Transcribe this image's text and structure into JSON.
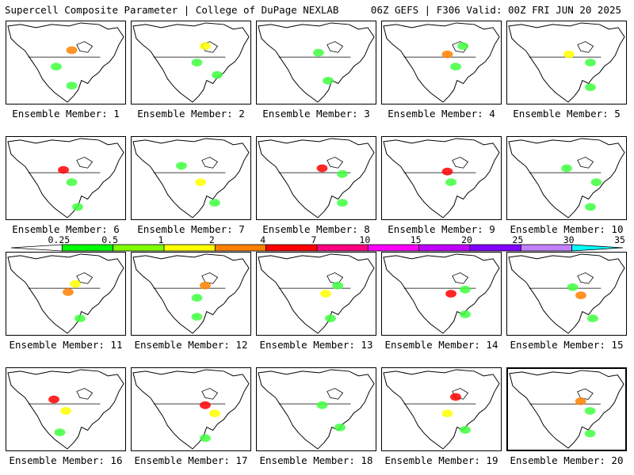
{
  "header": {
    "left": "Supercell Composite Parameter | College of DuPage NEXLAB",
    "right": "06Z GEFS | F306 Valid: 00Z FRI JUN 20 2025"
  },
  "members": [
    {
      "label": "Ensemble Member: 1",
      "blobs": [
        [
          0.55,
          0.35,
          "#ff8000"
        ],
        [
          0.42,
          0.55,
          "#40ff40"
        ],
        [
          0.55,
          0.78,
          "#40ff40"
        ]
      ]
    },
    {
      "label": "Ensemble Member: 2",
      "blobs": [
        [
          0.62,
          0.3,
          "#ffff00"
        ],
        [
          0.55,
          0.5,
          "#40ff40"
        ],
        [
          0.72,
          0.65,
          "#40ff40"
        ]
      ]
    },
    {
      "label": "Ensemble Member: 3",
      "blobs": [
        [
          0.52,
          0.38,
          "#40ff40"
        ],
        [
          0.6,
          0.72,
          "#40ff40"
        ]
      ]
    },
    {
      "label": "Ensemble Member: 4",
      "blobs": [
        [
          0.55,
          0.4,
          "#ff8000"
        ],
        [
          0.62,
          0.55,
          "#40ff40"
        ],
        [
          0.68,
          0.3,
          "#40ff40"
        ]
      ]
    },
    {
      "label": "Ensemble Member: 5",
      "blobs": [
        [
          0.52,
          0.4,
          "#ffff00"
        ],
        [
          0.7,
          0.5,
          "#40ff40"
        ],
        [
          0.7,
          0.8,
          "#40ff40"
        ]
      ]
    },
    {
      "label": "Ensemble Member: 6",
      "blobs": [
        [
          0.48,
          0.4,
          "#ff0000"
        ],
        [
          0.55,
          0.55,
          "#40ff40"
        ],
        [
          0.6,
          0.85,
          "#40ff40"
        ]
      ]
    },
    {
      "label": "Ensemble Member: 7",
      "blobs": [
        [
          0.42,
          0.35,
          "#40ff40"
        ],
        [
          0.58,
          0.55,
          "#ffff00"
        ],
        [
          0.7,
          0.8,
          "#40ff40"
        ]
      ]
    },
    {
      "label": "Ensemble Member: 8",
      "blobs": [
        [
          0.55,
          0.38,
          "#ff0000"
        ],
        [
          0.72,
          0.45,
          "#40ff40"
        ],
        [
          0.72,
          0.8,
          "#40ff40"
        ]
      ]
    },
    {
      "label": "Ensemble Member: 9",
      "blobs": [
        [
          0.55,
          0.42,
          "#ff0000"
        ],
        [
          0.58,
          0.55,
          "#40ff40"
        ]
      ]
    },
    {
      "label": "Ensemble Member: 10",
      "blobs": [
        [
          0.5,
          0.38,
          "#40ff40"
        ],
        [
          0.75,
          0.55,
          "#40ff40"
        ],
        [
          0.7,
          0.85,
          "#40ff40"
        ]
      ]
    },
    {
      "label": "Ensemble Member: 11",
      "blobs": [
        [
          0.52,
          0.48,
          "#ff8000"
        ],
        [
          0.58,
          0.38,
          "#ffff00"
        ],
        [
          0.62,
          0.8,
          "#40ff40"
        ]
      ]
    },
    {
      "label": "Ensemble Member: 12",
      "blobs": [
        [
          0.62,
          0.4,
          "#ff8000"
        ],
        [
          0.55,
          0.55,
          "#40ff40"
        ],
        [
          0.55,
          0.78,
          "#40ff40"
        ]
      ]
    },
    {
      "label": "Ensemble Member: 13",
      "blobs": [
        [
          0.58,
          0.5,
          "#ffff00"
        ],
        [
          0.68,
          0.4,
          "#40ff40"
        ],
        [
          0.62,
          0.8,
          "#40ff40"
        ]
      ]
    },
    {
      "label": "Ensemble Member: 14",
      "blobs": [
        [
          0.58,
          0.5,
          "#ff0000"
        ],
        [
          0.7,
          0.45,
          "#40ff40"
        ],
        [
          0.7,
          0.75,
          "#40ff40"
        ]
      ]
    },
    {
      "label": "Ensemble Member: 15",
      "blobs": [
        [
          0.62,
          0.52,
          "#ff8000"
        ],
        [
          0.55,
          0.42,
          "#40ff40"
        ],
        [
          0.72,
          0.8,
          "#40ff40"
        ]
      ]
    },
    {
      "label": "Ensemble Member: 16",
      "blobs": [
        [
          0.4,
          0.38,
          "#ff0000"
        ],
        [
          0.5,
          0.52,
          "#ffff00"
        ],
        [
          0.45,
          0.78,
          "#40ff40"
        ]
      ]
    },
    {
      "label": "Ensemble Member: 17",
      "blobs": [
        [
          0.62,
          0.45,
          "#ff0000"
        ],
        [
          0.7,
          0.55,
          "#ffff00"
        ],
        [
          0.62,
          0.85,
          "#40ff40"
        ]
      ]
    },
    {
      "label": "Ensemble Member: 18",
      "blobs": [
        [
          0.55,
          0.45,
          "#40ff40"
        ],
        [
          0.7,
          0.72,
          "#40ff40"
        ]
      ]
    },
    {
      "label": "Ensemble Member: 19",
      "blobs": [
        [
          0.62,
          0.35,
          "#ff0000"
        ],
        [
          0.55,
          0.55,
          "#ffff00"
        ],
        [
          0.7,
          0.75,
          "#40ff40"
        ]
      ]
    },
    {
      "label": "Ensemble Member: 20",
      "blobs": [
        [
          0.62,
          0.4,
          "#ff8000"
        ],
        [
          0.7,
          0.52,
          "#40ff40"
        ],
        [
          0.7,
          0.8,
          "#40ff40"
        ]
      ]
    }
  ],
  "legend": {
    "ticks": [
      "0.25",
      "0.5",
      "1",
      "2",
      "4",
      "7",
      "10",
      "15",
      "20",
      "25",
      "30",
      "35"
    ],
    "colors": [
      "#ffffff",
      "#00ff00",
      "#80ff00",
      "#ffff00",
      "#ff8000",
      "#ff0000",
      "#ff0080",
      "#ff00ff",
      "#c000ff",
      "#8000ff",
      "#c080ff",
      "#00ffff"
    ]
  },
  "selected_index": 19
}
